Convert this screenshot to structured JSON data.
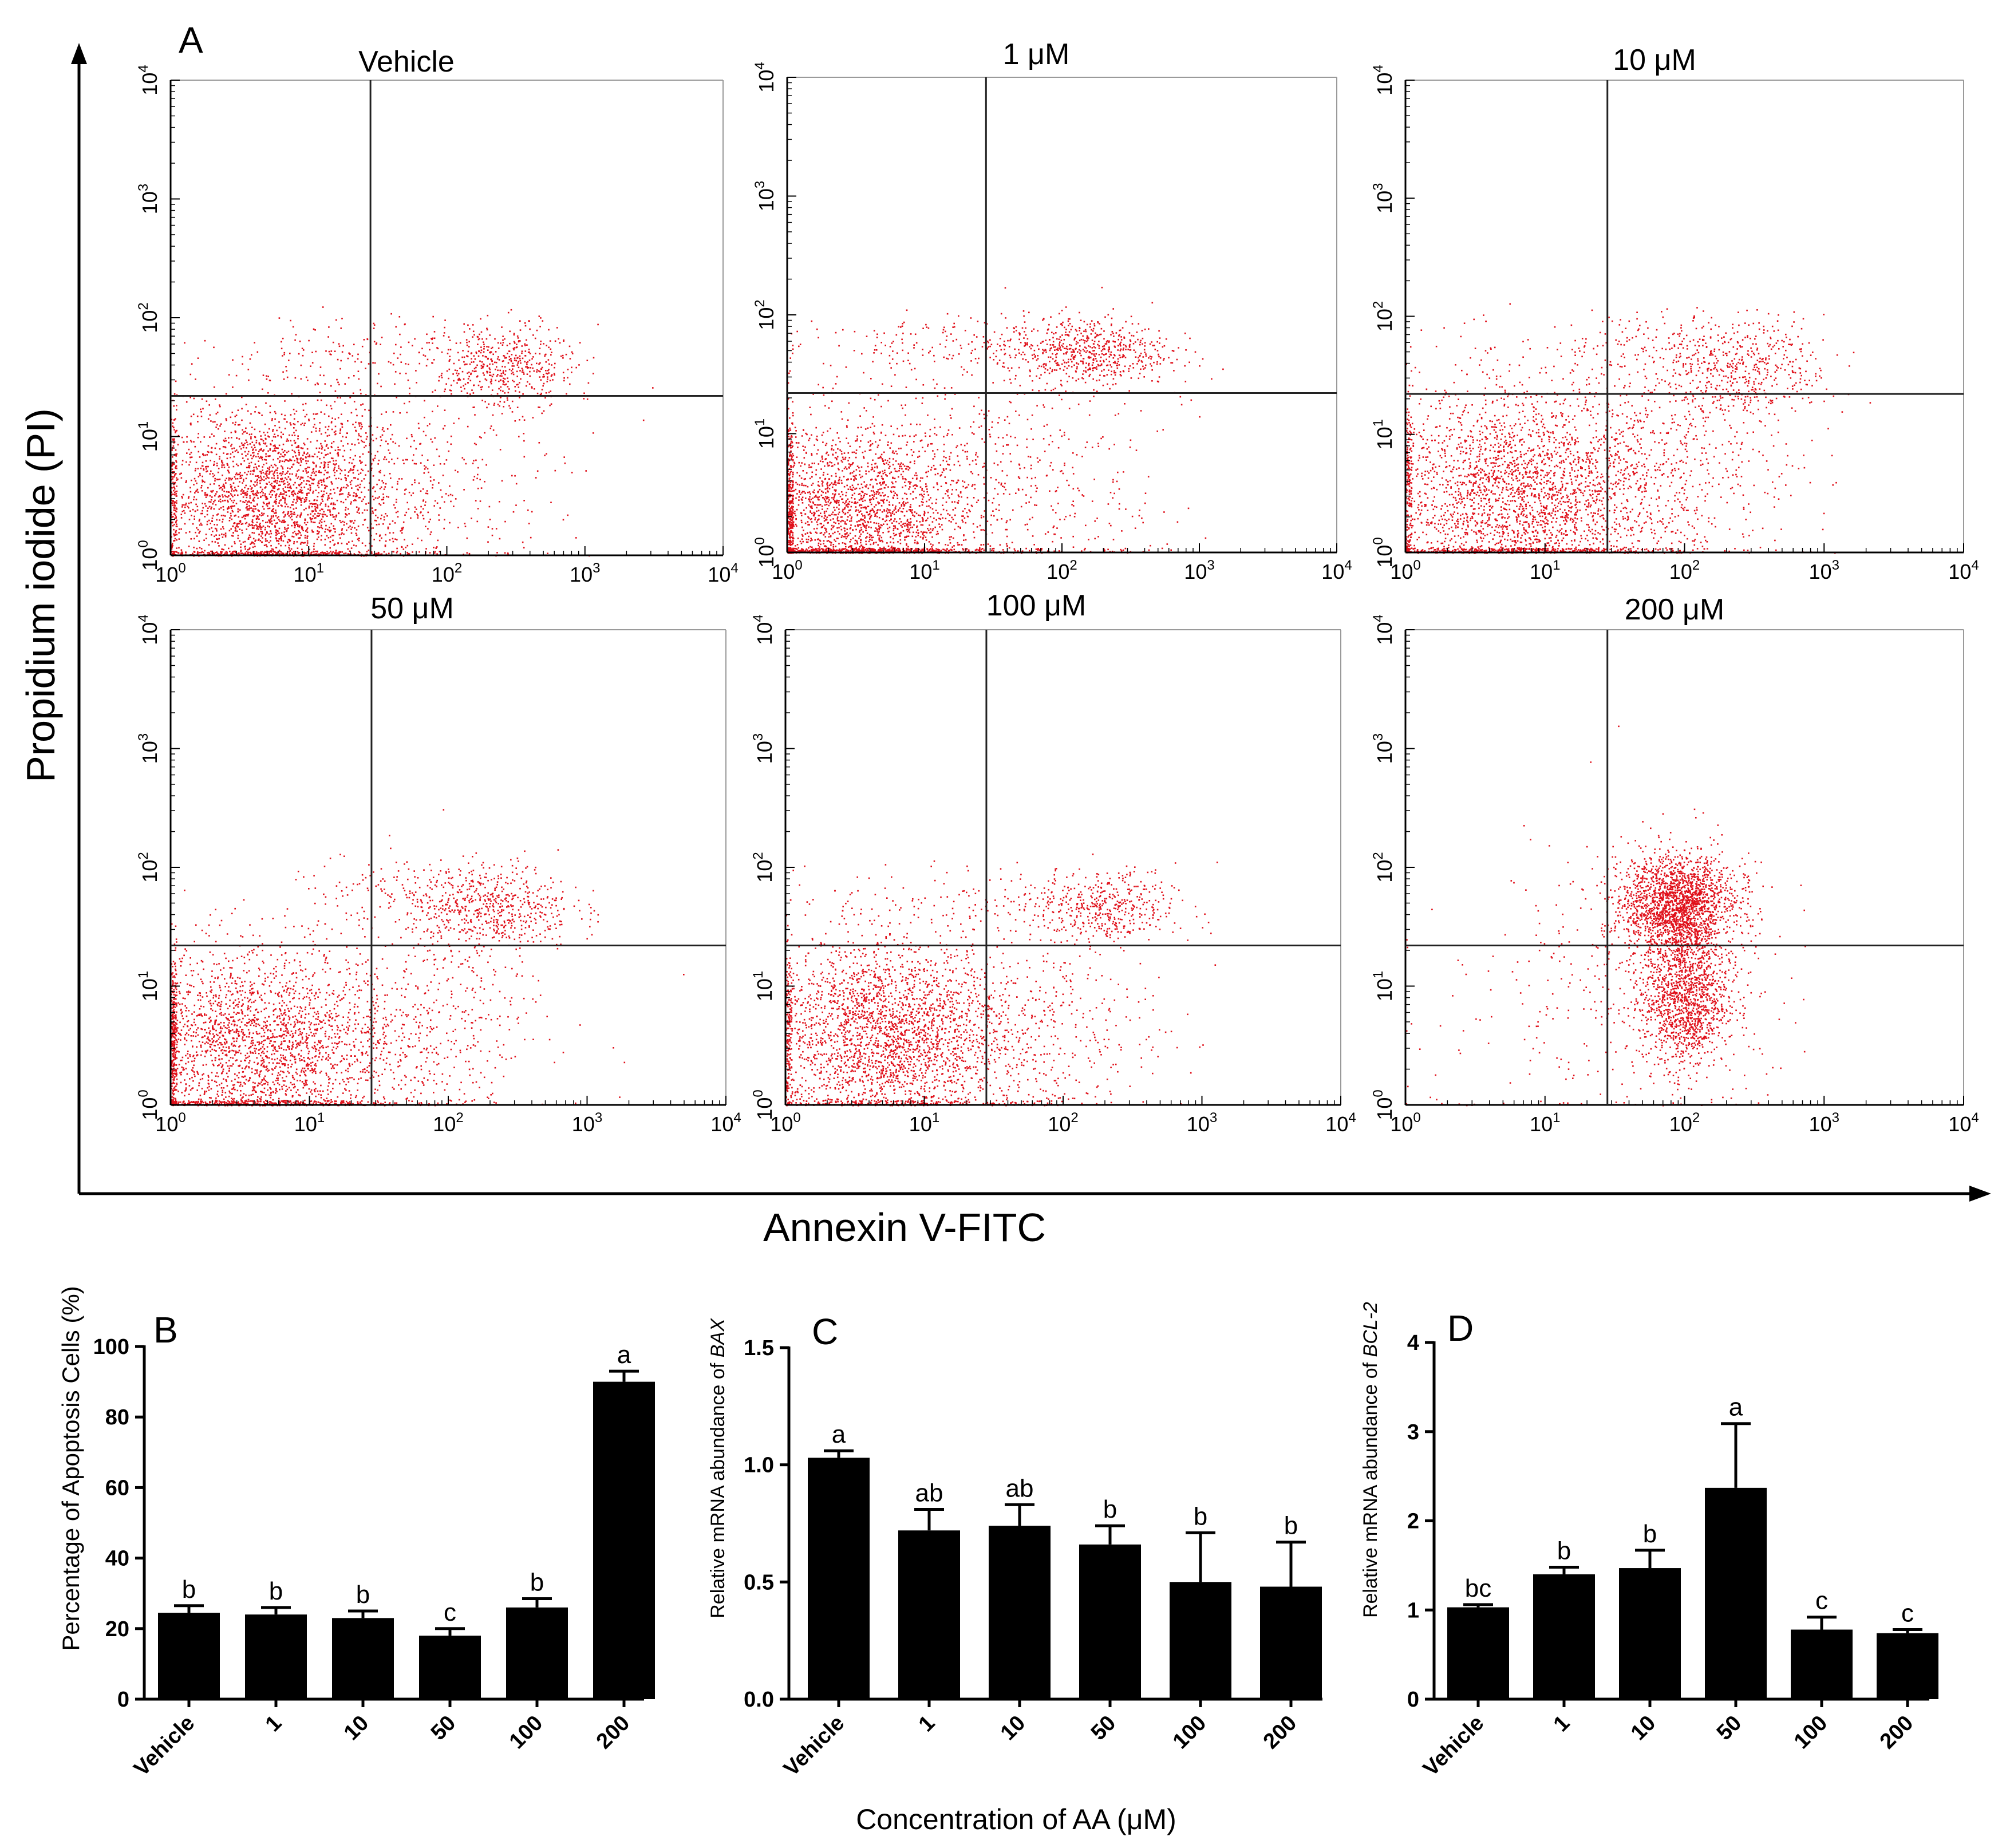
{
  "chart_data": [
    {
      "panel": "A",
      "type": "scatter",
      "ylabel": "Propidium iodide (PI)",
      "xlabel": "Annexin V-FITC",
      "axis_scale": "log",
      "xlim": [
        1,
        10000
      ],
      "ylim": [
        1,
        10000
      ],
      "tick_labels": [
        "10",
        "10",
        "10",
        "10",
        "10"
      ],
      "tick_exponents": [
        "0",
        "1",
        "2",
        "3",
        "4"
      ],
      "quadrant_gate": {
        "x": 28,
        "y": 22
      },
      "point_color": "#e0101a",
      "panels": [
        {
          "title": "Vehicle",
          "clusters": [
            {
              "cx": 5,
              "cy": 3,
              "sx": 0.45,
              "sy": 0.42,
              "n": 2600
            },
            {
              "cx": 40,
              "cy": 4,
              "sx": 0.55,
              "sy": 0.45,
              "n": 500
            },
            {
              "cx": 260,
              "cy": 38,
              "sx": 0.25,
              "sy": 0.18,
              "n": 500
            },
            {
              "cx": 40,
              "cy": 55,
              "sx": 0.6,
              "sy": 0.15,
              "n": 150
            }
          ]
        },
        {
          "title": "1 μM",
          "clusters": [
            {
              "cx": 3,
              "cy": 2,
              "sx": 0.45,
              "sy": 0.4,
              "n": 2400
            },
            {
              "cx": 40,
              "cy": 3,
              "sx": 0.55,
              "sy": 0.5,
              "n": 500
            },
            {
              "cx": 150,
              "cy": 50,
              "sx": 0.3,
              "sy": 0.15,
              "n": 600
            },
            {
              "cx": 15,
              "cy": 55,
              "sx": 0.6,
              "sy": 0.12,
              "n": 200
            }
          ]
        },
        {
          "title": "10 μM",
          "clusters": [
            {
              "cx": 6,
              "cy": 3,
              "sx": 0.5,
              "sy": 0.45,
              "n": 2800
            },
            {
              "cx": 60,
              "cy": 5,
              "sx": 0.5,
              "sy": 0.5,
              "n": 700
            },
            {
              "cx": 260,
              "cy": 35,
              "sx": 0.3,
              "sy": 0.2,
              "n": 450
            },
            {
              "cx": 60,
              "cy": 55,
              "sx": 0.5,
              "sy": 0.15,
              "n": 150
            }
          ]
        },
        {
          "title": "50 μM",
          "clusters": [
            {
              "cx": 4,
              "cy": 3,
              "sx": 0.5,
              "sy": 0.42,
              "n": 2600
            },
            {
              "cx": 60,
              "cy": 5,
              "sx": 0.5,
              "sy": 0.5,
              "n": 500
            },
            {
              "cx": 200,
              "cy": 45,
              "sx": 0.3,
              "sy": 0.18,
              "n": 550
            },
            {
              "cx": 60,
              "cy": 60,
              "sx": 0.5,
              "sy": 0.15,
              "n": 150
            }
          ]
        },
        {
          "title": "100 μM",
          "clusters": [
            {
              "cx": 5,
              "cy": 4,
              "sx": 0.45,
              "sy": 0.4,
              "n": 2800
            },
            {
              "cx": 50,
              "cy": 4,
              "sx": 0.5,
              "sy": 0.45,
              "n": 500
            },
            {
              "cx": 200,
              "cy": 45,
              "sx": 0.25,
              "sy": 0.15,
              "n": 400
            },
            {
              "cx": 40,
              "cy": 55,
              "sx": 0.6,
              "sy": 0.15,
              "n": 150
            }
          ]
        },
        {
          "title": "200 μM",
          "clusters": [
            {
              "cx": 90,
              "cy": 50,
              "sx": 0.2,
              "sy": 0.2,
              "n": 1900
            },
            {
              "cx": 100,
              "cy": 8,
              "sx": 0.15,
              "sy": 0.3,
              "n": 1300
            },
            {
              "cx": 60,
              "cy": 20,
              "sx": 0.45,
              "sy": 0.5,
              "n": 400
            },
            {
              "cx": 20,
              "cy": 4,
              "sx": 0.6,
              "sy": 0.5,
              "n": 120
            }
          ]
        }
      ]
    },
    {
      "panel": "B",
      "type": "bar",
      "categories": [
        "Vehicle",
        "1",
        "10",
        "50",
        "100",
        "200"
      ],
      "values": [
        24.5,
        24,
        23,
        18,
        26,
        90
      ],
      "errors": [
        2,
        2,
        2,
        2,
        2.5,
        3
      ],
      "significance": [
        "b",
        "b",
        "b",
        "c",
        "b",
        "a"
      ],
      "ylabel": "Percentage of Apoptosis Cells (%)",
      "ylim": [
        0,
        100
      ],
      "yticks": [
        "0",
        "20",
        "40",
        "60",
        "80",
        "100"
      ]
    },
    {
      "panel": "C",
      "type": "bar",
      "categories": [
        "Vehicle",
        "1",
        "10",
        "50",
        "100",
        "200"
      ],
      "values": [
        1.03,
        0.72,
        0.74,
        0.66,
        0.5,
        0.48
      ],
      "errors": [
        0.03,
        0.09,
        0.09,
        0.08,
        0.21,
        0.19
      ],
      "significance": [
        "a",
        "ab",
        "ab",
        "b",
        "b",
        "b"
      ],
      "ylabel_prefix": "Relative mRNA abundance of ",
      "ylabel_gene": "BAX",
      "ylim": [
        0,
        1.5
      ],
      "yticks": [
        "0.0",
        "0.5",
        "1.0",
        "1.5"
      ]
    },
    {
      "panel": "D",
      "type": "bar",
      "categories": [
        "Vehicle",
        "1",
        "10",
        "50",
        "100",
        "200"
      ],
      "values": [
        1.03,
        1.4,
        1.47,
        2.37,
        0.78,
        0.74
      ],
      "errors": [
        0.03,
        0.08,
        0.2,
        0.72,
        0.14,
        0.04
      ],
      "significance": [
        "bc",
        "b",
        "b",
        "a",
        "c",
        "c"
      ],
      "ylabel_prefix": "Relative mRNA abundance of  ",
      "ylabel_gene": "BCL-2",
      "ylim": [
        0,
        4
      ],
      "yticks": [
        "0",
        "1",
        "2",
        "3",
        "4"
      ]
    }
  ],
  "shared_xlabel": "Concentration of AA (μM)"
}
